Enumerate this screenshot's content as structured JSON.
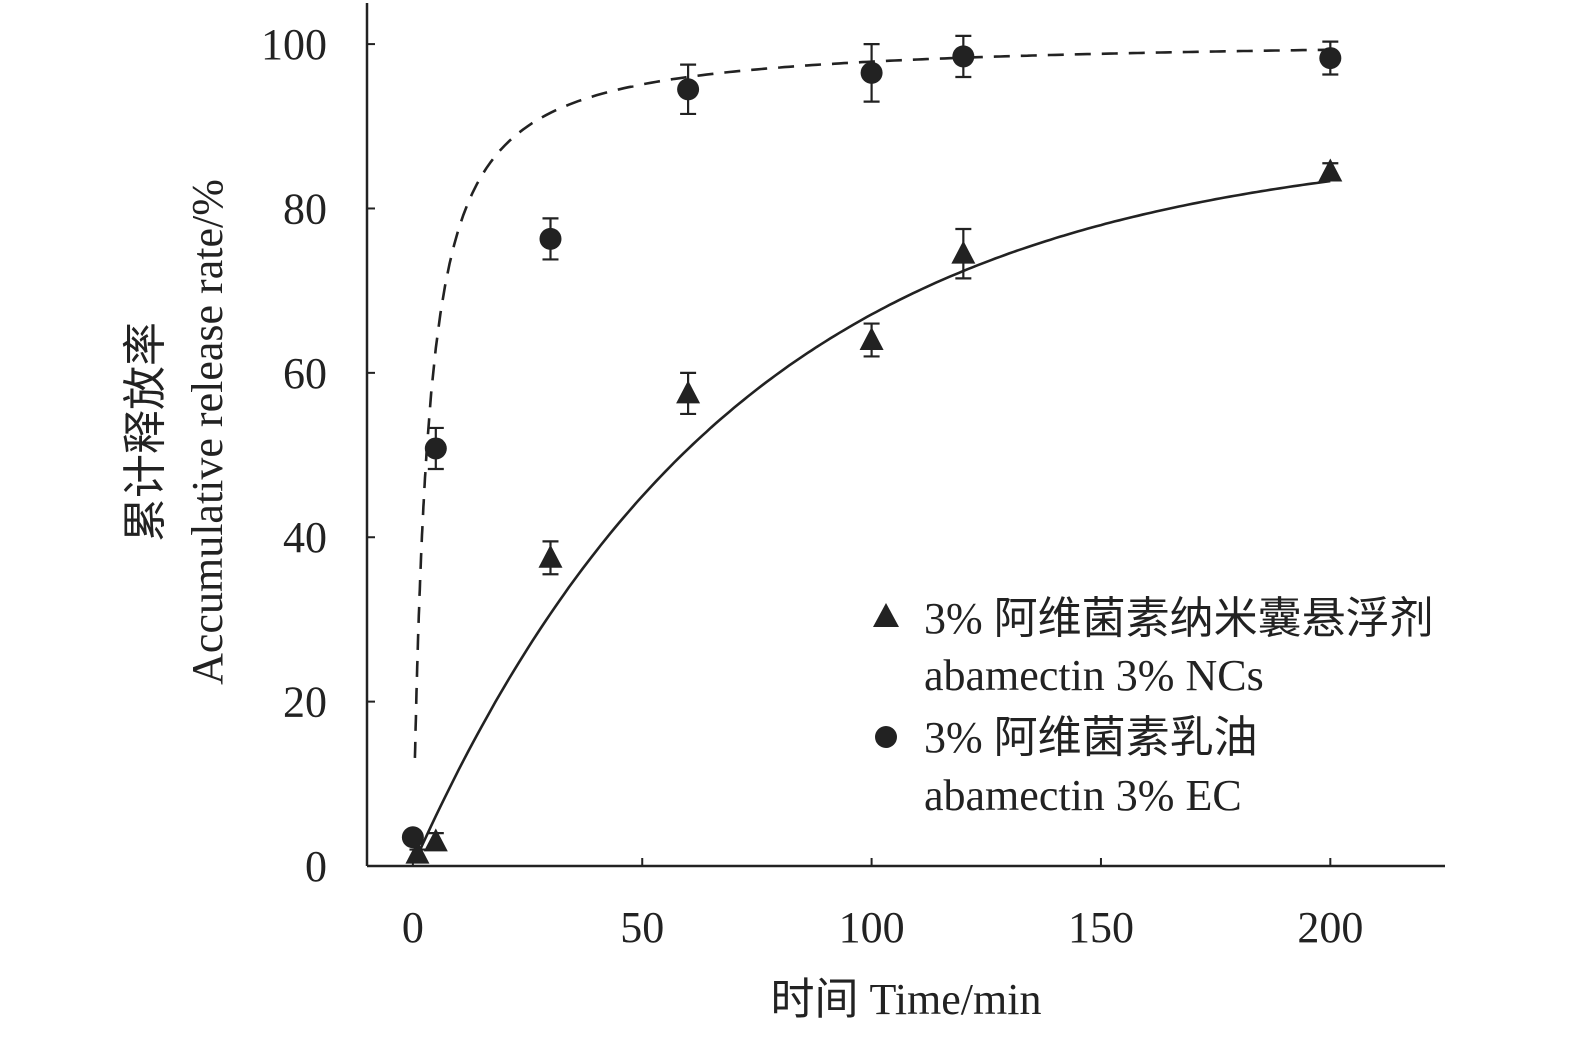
{
  "chart_data": {
    "type": "scatter",
    "xlabel": "时间 Time/min",
    "ylabel_line1": "累计释放率",
    "ylabel_line2": "Accumulative release rate/%",
    "xlim": [
      -10,
      225
    ],
    "ylim": [
      0,
      105
    ],
    "xticks": [
      0,
      50,
      100,
      150,
      200
    ],
    "yticks": [
      0,
      20,
      40,
      60,
      80,
      100
    ],
    "legend_position": "bottom-right",
    "series": [
      {
        "name": "3% 阿维菌素纳米囊悬浮剂",
        "name_en": "abamectin 3% NCs",
        "marker": "triangle",
        "fit_line": "solid",
        "x": [
          1,
          5,
          30,
          60,
          100,
          120,
          200
        ],
        "y": [
          1.5,
          3.0,
          37.5,
          57.5,
          64.0,
          74.5,
          84.5
        ],
        "error": [
          0.5,
          1.0,
          2.0,
          2.5,
          2.0,
          3.0,
          1.0
        ],
        "fit": {
          "model": "exponential",
          "a": 88.5,
          "k": 0.0142
        }
      },
      {
        "name": "3% 阿维菌素乳油",
        "name_en": "abamectin 3% EC",
        "marker": "circle",
        "fit_line": "dashed",
        "x": [
          0,
          5,
          30,
          60,
          100,
          120,
          200
        ],
        "y": [
          3.5,
          50.8,
          76.3,
          94.5,
          96.5,
          98.5,
          98.3
        ],
        "error": [
          0.5,
          2.5,
          2.5,
          3.0,
          3.5,
          2.5,
          2.0
        ],
        "fit": {
          "model": "hyperbolic",
          "a": 100.8,
          "b": 3.0
        }
      }
    ]
  },
  "colors": {
    "ink": "#222222",
    "background": "#ffffff"
  }
}
